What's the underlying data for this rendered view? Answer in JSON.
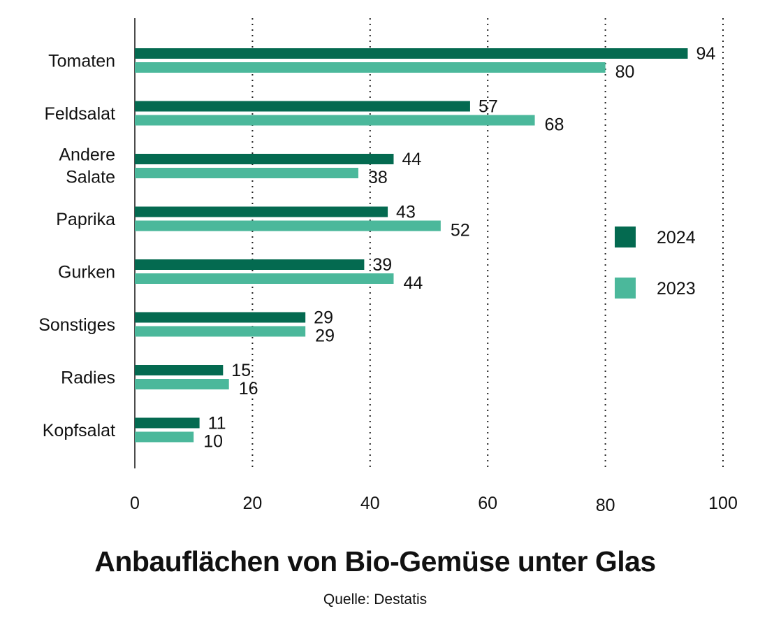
{
  "chart_data": {
    "type": "bar",
    "orientation": "horizontal",
    "title": "Anbauflächen von Bio-Gemüse unter Glas",
    "source": "Quelle: Destatis",
    "categories": [
      "Tomaten",
      "Feldsalat",
      "Andere Salate",
      "Paprika",
      "Gurken",
      "Sonstiges",
      "Radies",
      "Kopfsalat"
    ],
    "category_lines": [
      [
        "Tomaten"
      ],
      [
        "Feldsalat"
      ],
      [
        "Andere",
        "Salate"
      ],
      [
        "Paprika"
      ],
      [
        "Gurken"
      ],
      [
        "Sonstiges"
      ],
      [
        "Radies"
      ],
      [
        "Kopfsalat"
      ]
    ],
    "series": [
      {
        "name": "2024",
        "color": "#046a50",
        "values": [
          94,
          57,
          44,
          43,
          39,
          29,
          15,
          11
        ]
      },
      {
        "name": "2023",
        "color": "#4bb89b",
        "values": [
          80,
          68,
          38,
          52,
          44,
          29,
          16,
          10
        ]
      }
    ],
    "xlim": [
      0,
      100
    ],
    "xticks": [
      0,
      20,
      40,
      60,
      80,
      100
    ],
    "grid": "vertical dotted",
    "legend_position": "right"
  }
}
